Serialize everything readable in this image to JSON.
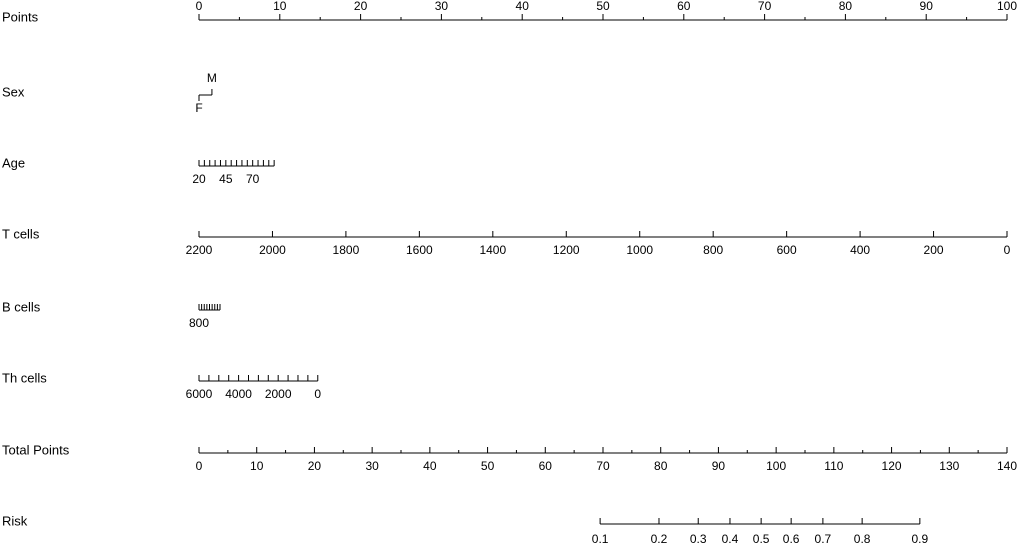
{
  "chart_data": {
    "type": "nomogram",
    "points_scale": {
      "name": "Points",
      "lim": [
        0,
        100
      ],
      "ticks": [
        0,
        10,
        20,
        30,
        40,
        50,
        60,
        70,
        80,
        90,
        100
      ],
      "minor_ticks": [
        5,
        15,
        25,
        35,
        45,
        55,
        65,
        75,
        85,
        95
      ]
    },
    "variables": [
      {
        "name": "Sex",
        "levels": [
          "F",
          "M"
        ],
        "level_points": [
          0,
          1.6
        ]
      },
      {
        "name": "Age",
        "var_lim": [
          20,
          90
        ],
        "points_lim": [
          0,
          9.3
        ],
        "ticks": [
          20,
          45,
          70
        ],
        "minor_ticks": [
          25,
          30,
          35,
          40,
          50,
          55,
          60,
          65,
          75,
          80,
          85,
          90
        ]
      },
      {
        "name": "T cells",
        "var_lim": [
          2200,
          0
        ],
        "points_lim": [
          0,
          100
        ],
        "ticks": [
          2200,
          2000,
          1800,
          1600,
          1400,
          1200,
          1000,
          800,
          600,
          400,
          200,
          0
        ],
        "minor_ticks": []
      },
      {
        "name": "B cells",
        "var_lim": [
          800,
          0
        ],
        "points_lim": [
          0,
          2.6
        ],
        "ticks": [
          800
        ],
        "minor_ticks": [
          700,
          600,
          500,
          400,
          300,
          200,
          100,
          0
        ]
      },
      {
        "name": "Th cells",
        "var_lim": [
          6000,
          0
        ],
        "points_lim": [
          0,
          14.7
        ],
        "ticks": [
          6000,
          4000,
          2000,
          0
        ],
        "minor_ticks": [
          5500,
          5000,
          4500,
          3500,
          3000,
          2500,
          1500,
          1000,
          500
        ]
      }
    ],
    "total_points_scale": {
      "name": "Total Points",
      "lim": [
        0,
        140
      ],
      "ticks": [
        0,
        10,
        20,
        30,
        40,
        50,
        60,
        70,
        80,
        90,
        100,
        110,
        120,
        130,
        140
      ],
      "minor_ticks": [
        5,
        15,
        25,
        35,
        45,
        55,
        65,
        75,
        85,
        95,
        105,
        115,
        125,
        135
      ]
    },
    "risk_scale": {
      "name": "Risk",
      "ticks": [
        0.1,
        0.2,
        0.3,
        0.4,
        0.5,
        0.6,
        0.7,
        0.8,
        0.9
      ],
      "tick_total_points": [
        69.5,
        79.7,
        86.5,
        92.0,
        97.4,
        102.6,
        108.1,
        114.9,
        124.9
      ]
    }
  }
}
